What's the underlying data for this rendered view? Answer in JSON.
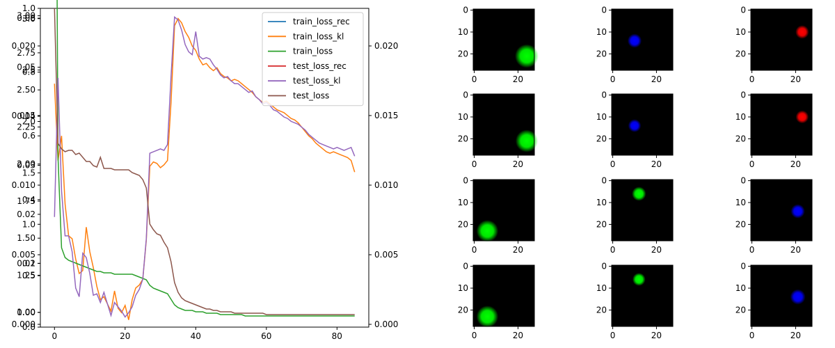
{
  "chart_data": [
    {
      "type": "line",
      "x_ticks": [
        "0",
        "20",
        "40",
        "60",
        "80"
      ],
      "overlapped_left_ticks": [
        [
          "0.0",
          "0.2",
          "0.4",
          "0.6",
          "0.8",
          "1.0"
        ],
        [
          "0.00",
          "0.01",
          "0.02",
          "0.03",
          "0.04",
          "0.05",
          "0.06"
        ],
        [
          "0.000",
          "0.005",
          "0.010",
          "0.015",
          "0.020"
        ],
        [
          "1.00",
          "1.25",
          "1.50",
          "1.75",
          "2.00",
          "2.25",
          "2.50",
          "2.75",
          "3.00"
        ],
        [
          "0.5",
          "1.0",
          "1.5",
          "2.0",
          "2.5",
          "3.0"
        ]
      ],
      "right_ticks": [
        "0.000",
        "0.005",
        "0.010",
        "0.015",
        "0.020"
      ],
      "legend": {
        "placement": "upper right"
      },
      "series": [
        {
          "name": "train_loss_rec",
          "color": "#1f77b4",
          "x": [
            0,
            85
          ],
          "y": [
            0.022,
            0.0008
          ],
          "note": ""
        },
        {
          "name": "train_loss_kl",
          "color": "#ff7f0e",
          "x": [
            0,
            1,
            2,
            3,
            4,
            5,
            6,
            7,
            8,
            9,
            10,
            11,
            12,
            13,
            14,
            15,
            16,
            17,
            18,
            19,
            20,
            21,
            22,
            23,
            24,
            25,
            26,
            27,
            28,
            29,
            30,
            31,
            32,
            33,
            34,
            35,
            36,
            37,
            38,
            39,
            40,
            41,
            42,
            43,
            44,
            45,
            46,
            47,
            48,
            49,
            50,
            51,
            52,
            53,
            54,
            55,
            56,
            57,
            58,
            59,
            60,
            61,
            62,
            63,
            64,
            65,
            66,
            67,
            68,
            69,
            70,
            71,
            72,
            73,
            74,
            75,
            76,
            77,
            78,
            79,
            80,
            81,
            82,
            83,
            84,
            85
          ],
          "y": [
            2.53,
            2.0,
            2.17,
            1.7,
            1.48,
            1.46,
            1.32,
            1.22,
            1.24,
            1.54,
            1.37,
            1.26,
            1.13,
            1.04,
            1.06,
            1.01,
            0.96,
            1.1,
            0.98,
            0.95,
            1.0,
            0.9,
            1.04,
            1.12,
            1.14,
            1.18,
            1.45,
            1.96,
            1.99,
            1.98,
            1.95,
            1.97,
            2.0,
            2.4,
            2.93,
            2.98,
            2.95,
            2.89,
            2.85,
            2.79,
            2.76,
            2.7,
            2.66,
            2.67,
            2.64,
            2.62,
            2.64,
            2.6,
            2.58,
            2.57,
            2.55,
            2.56,
            2.55,
            2.53,
            2.51,
            2.49,
            2.47,
            2.44,
            2.42,
            2.4,
            2.41,
            2.39,
            2.37,
            2.35,
            2.34,
            2.33,
            2.31,
            2.29,
            2.28,
            2.26,
            2.23,
            2.2,
            2.17,
            2.15,
            2.12,
            2.1,
            2.08,
            2.06,
            2.05,
            2.06,
            2.05,
            2.04,
            2.03,
            2.02,
            2.0,
            1.92
          ]
        },
        {
          "name": "train_loss",
          "color": "#2ca02c",
          "x": [
            0,
            1,
            2,
            3,
            4,
            5,
            6,
            7,
            8,
            9,
            10,
            11,
            12,
            13,
            14,
            15,
            16,
            17,
            18,
            19,
            20,
            21,
            22,
            23,
            24,
            25,
            26,
            27,
            28,
            29,
            30,
            31,
            32,
            33,
            34,
            35,
            36,
            37,
            38,
            39,
            40,
            41,
            42,
            43,
            44,
            45,
            46,
            47,
            48,
            49,
            50,
            51,
            52,
            53,
            54,
            55,
            56,
            57,
            58,
            59,
            60,
            61,
            62,
            63,
            64,
            65,
            66,
            67,
            68,
            69,
            70,
            71,
            72,
            73,
            74,
            75,
            76,
            77,
            78,
            79,
            80,
            81,
            82,
            83,
            84,
            85
          ],
          "y": [
            0.057,
            0.012,
            0.0055,
            0.0048,
            0.0046,
            0.0045,
            0.0044,
            0.0043,
            0.0042,
            0.0041,
            0.004,
            0.0039,
            0.0038,
            0.0038,
            0.0037,
            0.0037,
            0.0037,
            0.0036,
            0.0036,
            0.0036,
            0.0036,
            0.0036,
            0.0036,
            0.0035,
            0.0034,
            0.0033,
            0.0032,
            0.0028,
            0.0026,
            0.0025,
            0.0024,
            0.0023,
            0.0022,
            0.0018,
            0.0014,
            0.0012,
            0.0011,
            0.001,
            0.001,
            0.001,
            0.0009,
            0.0009,
            0.0009,
            0.0008,
            0.0008,
            0.0008,
            0.0008,
            0.0007,
            0.0007,
            0.0007,
            0.0007,
            0.0007,
            0.0007,
            0.0007,
            0.0006,
            0.0006,
            0.0006,
            0.0006,
            0.0006,
            0.0006,
            0.0006,
            0.0006,
            0.0006,
            0.0006,
            0.0006,
            0.0006,
            0.0006,
            0.0006,
            0.0006,
            0.0006,
            0.0006,
            0.0006,
            0.0006,
            0.0006,
            0.0006,
            0.0006,
            0.0006,
            0.0006,
            0.0006,
            0.0006,
            0.0006,
            0.0006,
            0.0006,
            0.0006,
            0.0006,
            0.0006
          ]
        },
        {
          "name": "test_loss_rec",
          "color": "#d62728",
          "x": [
            0,
            85
          ],
          "y": [
            0.022,
            0.0007
          ]
        },
        {
          "name": "test_loss_kl",
          "color": "#9467bd",
          "x": [
            0,
            1,
            2,
            3,
            4,
            5,
            6,
            7,
            8,
            9,
            10,
            11,
            12,
            13,
            14,
            15,
            16,
            17,
            18,
            19,
            20,
            21,
            22,
            23,
            24,
            25,
            26,
            27,
            28,
            29,
            30,
            31,
            32,
            33,
            34,
            35,
            36,
            37,
            38,
            39,
            40,
            41,
            42,
            43,
            44,
            45,
            46,
            47,
            48,
            49,
            50,
            51,
            52,
            53,
            54,
            55,
            56,
            57,
            58,
            59,
            60,
            61,
            62,
            63,
            64,
            65,
            66,
            67,
            68,
            69,
            70,
            71,
            72,
            73,
            74,
            75,
            76,
            77,
            78,
            79,
            80,
            81,
            82,
            83,
            84,
            85
          ],
          "y": [
            1.61,
            2.57,
            1.79,
            1.48,
            1.48,
            1.37,
            1.12,
            1.06,
            1.36,
            1.33,
            1.22,
            1.07,
            1.08,
            1.02,
            1.09,
            1.01,
            0.93,
            1.02,
            0.99,
            0.96,
            0.92,
            0.95,
            0.99,
            1.07,
            1.11,
            1.18,
            1.46,
            2.05,
            2.06,
            2.07,
            2.08,
            2.07,
            2.11,
            2.58,
            2.99,
            2.97,
            2.9,
            2.8,
            2.75,
            2.73,
            2.89,
            2.72,
            2.7,
            2.71,
            2.7,
            2.66,
            2.63,
            2.59,
            2.57,
            2.58,
            2.55,
            2.53,
            2.53,
            2.51,
            2.49,
            2.47,
            2.48,
            2.44,
            2.42,
            2.39,
            2.4,
            2.38,
            2.35,
            2.34,
            2.32,
            2.3,
            2.29,
            2.27,
            2.26,
            2.25,
            2.23,
            2.21,
            2.18,
            2.16,
            2.14,
            2.12,
            2.11,
            2.1,
            2.09,
            2.08,
            2.09,
            2.08,
            2.07,
            2.08,
            2.09,
            2.03
          ]
        },
        {
          "name": "test_loss",
          "color": "#8c564b",
          "x": [
            0,
            1,
            2,
            3,
            4,
            5,
            6,
            7,
            8,
            9,
            10,
            11,
            12,
            13,
            14,
            15,
            16,
            17,
            18,
            19,
            20,
            21,
            22,
            23,
            24,
            25,
            26,
            27,
            28,
            29,
            30,
            31,
            32,
            33,
            34,
            35,
            36,
            37,
            38,
            39,
            40,
            41,
            42,
            43,
            44,
            45,
            46,
            47,
            48,
            49,
            50,
            51,
            52,
            53,
            54,
            55,
            56,
            57,
            58,
            59,
            60,
            61,
            62,
            63,
            64,
            65,
            66,
            67,
            68,
            69,
            70,
            71,
            72,
            73,
            74,
            75,
            76,
            77,
            78,
            79,
            80,
            81,
            82,
            83,
            84,
            85
          ],
          "y": [
            0.0227,
            0.013,
            0.0126,
            0.0124,
            0.0125,
            0.0125,
            0.0122,
            0.0123,
            0.012,
            0.0117,
            0.0117,
            0.0114,
            0.0113,
            0.012,
            0.0112,
            0.0112,
            0.0112,
            0.0111,
            0.0111,
            0.0111,
            0.0111,
            0.0111,
            0.0109,
            0.0108,
            0.0107,
            0.0104,
            0.0098,
            0.0072,
            0.0068,
            0.0065,
            0.0064,
            0.0059,
            0.0055,
            0.0045,
            0.003,
            0.0023,
            0.0019,
            0.0017,
            0.0016,
            0.0015,
            0.0014,
            0.0013,
            0.0012,
            0.0011,
            0.0011,
            0.001,
            0.001,
            0.0009,
            0.0009,
            0.0009,
            0.0009,
            0.0008,
            0.0008,
            0.0008,
            0.0008,
            0.0008,
            0.0008,
            0.0008,
            0.0008,
            0.0008,
            0.0007,
            0.0007,
            0.0007,
            0.0007,
            0.0007,
            0.0007,
            0.0007,
            0.0007,
            0.0007,
            0.0007,
            0.0007,
            0.0007,
            0.0007,
            0.0007,
            0.0007,
            0.0007,
            0.0007,
            0.0007,
            0.0007,
            0.0007,
            0.0007,
            0.0007,
            0.0007,
            0.0007,
            0.0007,
            0.0007
          ]
        }
      ],
      "xlim": [
        -4,
        89
      ],
      "right_ylim": [
        -0.0002,
        0.0227
      ],
      "left_ylim_kl": [
        0.85,
        3.05
      ]
    },
    {
      "type": "heatmap",
      "grid": "4x3 sample images",
      "x_ticks": [
        "0",
        "20"
      ],
      "y_ticks": [
        "0",
        "10",
        "20"
      ],
      "image_size": 28,
      "cells": [
        {
          "color": "#00ff00",
          "cx": 24,
          "cy": 21,
          "r": 4.0
        },
        {
          "color": "#0000ff",
          "cx": 10,
          "cy": 14,
          "r": 2.4
        },
        {
          "color": "#ff0000",
          "cx": 23,
          "cy": 10,
          "r": 2.3
        },
        {
          "color": "#00ff00",
          "cx": 24,
          "cy": 21,
          "r": 3.8
        },
        {
          "color": "#0000ff",
          "cx": 10,
          "cy": 14,
          "r": 2.2
        },
        {
          "color": "#ff0000",
          "cx": 23,
          "cy": 10,
          "r": 2.2
        },
        {
          "color": "#00ff00",
          "cx": 6,
          "cy": 23,
          "r": 3.7
        },
        {
          "color": "#00ff00",
          "cx": 12,
          "cy": 6,
          "r": 2.4
        },
        {
          "color": "#0000ff",
          "cx": 21,
          "cy": 14,
          "r": 2.4
        },
        {
          "color": "#00ff00",
          "cx": 6,
          "cy": 23,
          "r": 3.7
        },
        {
          "color": "#00ff00",
          "cx": 12,
          "cy": 6,
          "r": 2.2
        },
        {
          "color": "#0000ff",
          "cx": 21,
          "cy": 14,
          "r": 2.6
        }
      ]
    }
  ]
}
